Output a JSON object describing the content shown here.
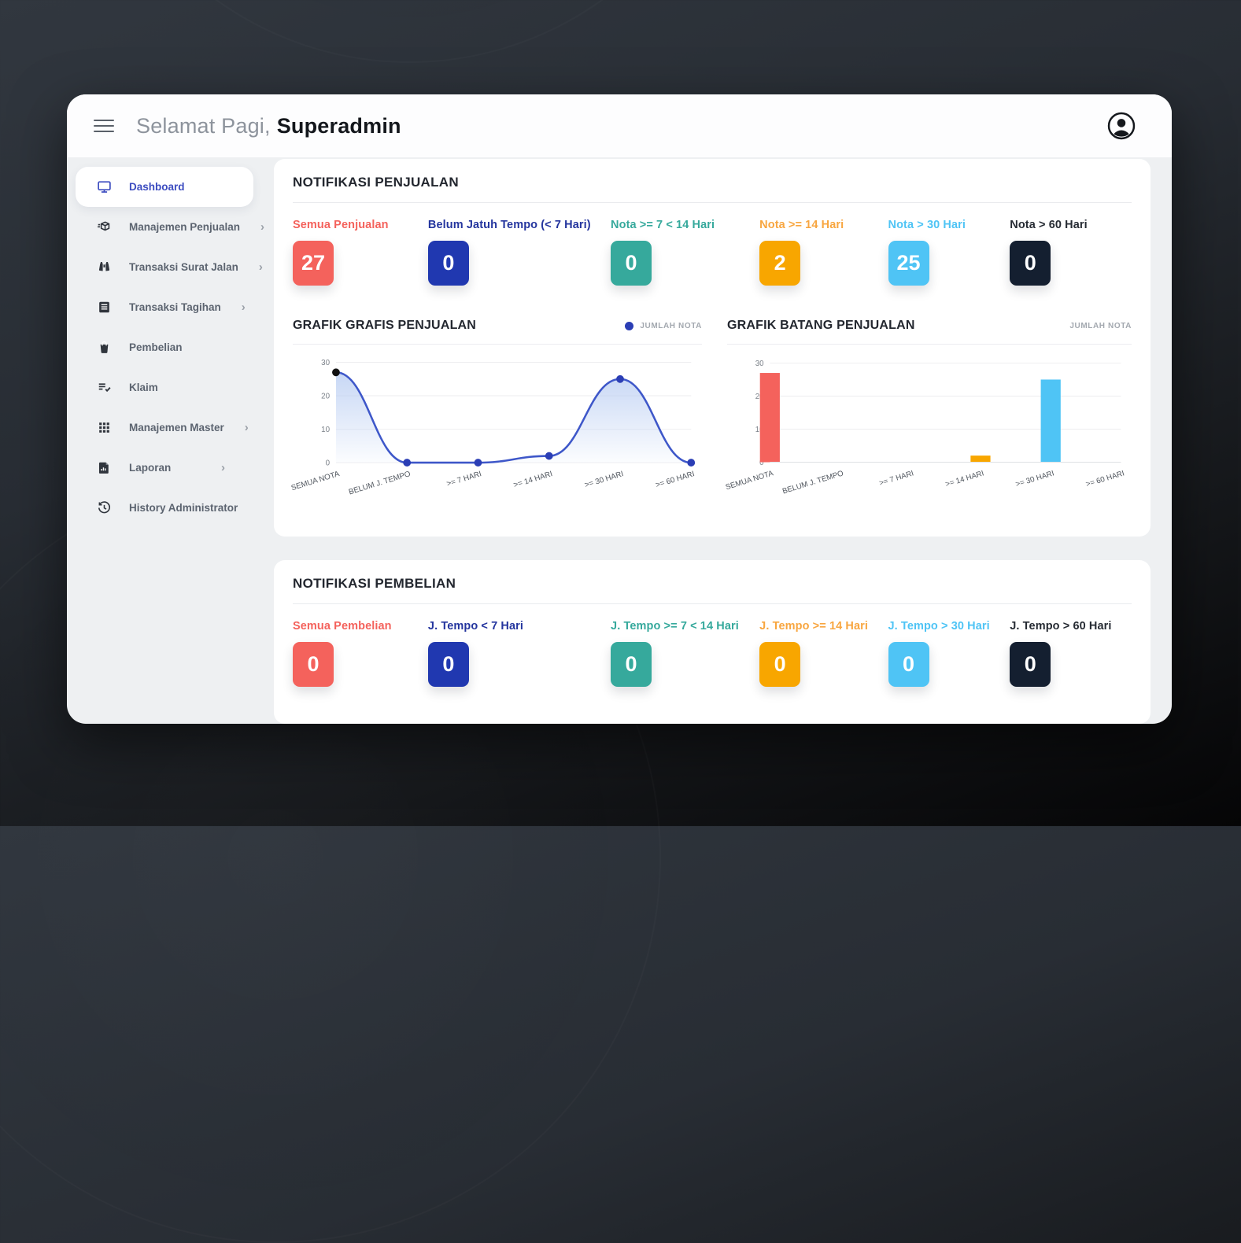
{
  "header": {
    "greeting": "Selamat Pagi,",
    "username": "Superadmin"
  },
  "sidebar": {
    "chevron_glyph": "›",
    "items": [
      {
        "label": "Dashboard",
        "icon": "monitor-icon",
        "active": true,
        "chevron": false
      },
      {
        "label": "Manajemen Penjualan",
        "icon": "package-icon",
        "active": false,
        "chevron": true
      },
      {
        "label": "Transaksi Surat Jalan",
        "icon": "binoculars-icon",
        "active": false,
        "chevron": true
      },
      {
        "label": "Transaksi Tagihan",
        "icon": "journal-icon",
        "active": false,
        "chevron": true
      },
      {
        "label": "Pembelian",
        "icon": "bag-icon",
        "active": false,
        "chevron": false
      },
      {
        "label": "Klaim",
        "icon": "list-check-icon",
        "active": false,
        "chevron": false
      },
      {
        "label": "Manajemen Master",
        "icon": "grid-icon",
        "active": false,
        "chevron": true
      },
      {
        "label": "Laporan",
        "icon": "file-chart-icon",
        "active": false,
        "chevron": true
      },
      {
        "label": "History Administrator",
        "icon": "clock-history-icon",
        "active": false,
        "chevron": false
      }
    ]
  },
  "penjualan": {
    "title": "NOTIFIKASI PENJUALAN",
    "stats": [
      {
        "label": "Semua Penjualan",
        "value": "27",
        "color": "#f4625c",
        "label_color": "#f4625c"
      },
      {
        "label": "Belum Jatuh Tempo (< 7 Hari)",
        "value": "0",
        "color": "#2038b0",
        "label_color": "#24359e"
      },
      {
        "label": "Nota >= 7 < 14 Hari",
        "value": "0",
        "color": "#36a99c",
        "label_color": "#36a99c"
      },
      {
        "label": "Nota >= 14 Hari",
        "value": "2",
        "color": "#f8a600",
        "label_color": "#f8a640"
      },
      {
        "label": "Nota > 30 Hari",
        "value": "25",
        "color": "#4fc4f5",
        "label_color": "#4fc4f5"
      },
      {
        "label": "Nota > 60 Hari",
        "value": "0",
        "color": "#141f30",
        "label_color": "#262b33"
      }
    ]
  },
  "pembelian": {
    "title": "NOTIFIKASI PEMBELIAN",
    "stats": [
      {
        "label": "Semua Pembelian",
        "value": "0",
        "color": "#f4625c",
        "label_color": "#f4625c"
      },
      {
        "label": "J. Tempo < 7 Hari",
        "value": "0",
        "color": "#2038b0",
        "label_color": "#24359e"
      },
      {
        "label": "J. Tempo >= 7 < 14 Hari",
        "value": "0",
        "color": "#36a99c",
        "label_color": "#36a99c"
      },
      {
        "label": "J. Tempo >= 14 Hari",
        "value": "0",
        "color": "#f8a600",
        "label_color": "#f8a640"
      },
      {
        "label": "J. Tempo > 30 Hari",
        "value": "0",
        "color": "#4fc4f5",
        "label_color": "#4fc4f5"
      },
      {
        "label": "J. Tempo > 60 Hari",
        "value": "0",
        "color": "#141f30",
        "label_color": "#262b33"
      }
    ]
  },
  "chart_data": [
    {
      "type": "line",
      "title": "GRAFIK GRAFIS PENJUALAN",
      "legend": "JUMLAH NOTA",
      "legend_dot_color": "#2b3eb5",
      "categories": [
        "SEMUA NOTA",
        "BELUM J. TEMPO",
        ">= 7 HARI",
        ">= 14 HARI",
        ">= 30 HARI",
        ">= 60 HARI"
      ],
      "values": [
        27,
        0,
        0,
        2,
        25,
        0
      ],
      "ylim": [
        0,
        30
      ],
      "yticks": [
        0,
        10,
        20,
        30
      ],
      "line_color": "#3e57c9",
      "point_color": "#2b3eb5",
      "first_point_color": "#111111",
      "fill_color": "#b9cdf2",
      "grid": true,
      "legend_position": "top-right"
    },
    {
      "type": "bar",
      "title": "GRAFIK BATANG PENJUALAN",
      "legend": "JUMLAH NOTA",
      "categories": [
        "SEMUA NOTA",
        "BELUM J. TEMPO",
        ">= 7 HARI",
        ">= 14 HARI",
        ">= 30 HARI",
        ">= 60 HARI"
      ],
      "values": [
        27,
        0,
        0,
        2,
        25,
        0
      ],
      "ylim": [
        0,
        30
      ],
      "yticks": [
        0,
        10,
        20,
        30
      ],
      "bar_colors": [
        "#f4625c",
        "#2038b0",
        "#36a99c",
        "#f8a600",
        "#4fc4f5",
        "#141f30"
      ],
      "grid": true,
      "legend_position": "top-right"
    }
  ]
}
